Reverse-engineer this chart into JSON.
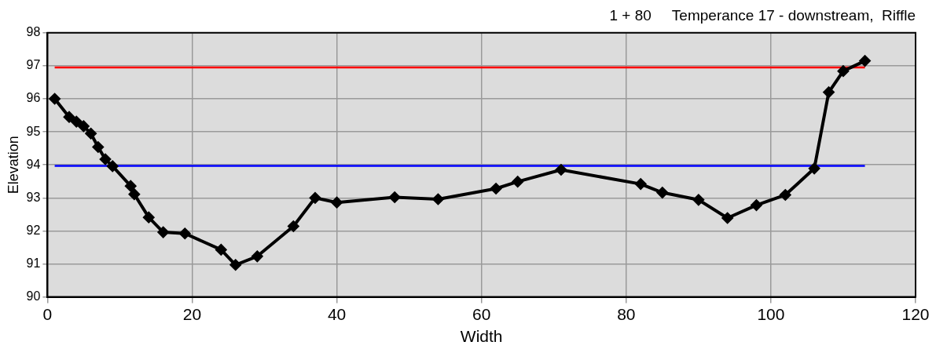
{
  "chart_data": {
    "type": "line",
    "title": "1 + 80     Temperance 17 - downstream,  Riffle",
    "xlabel": "Width",
    "ylabel": "Elevation",
    "x": [
      1,
      3,
      4,
      5,
      6,
      7,
      8,
      9,
      11.5,
      12,
      14,
      16,
      19,
      24,
      26,
      29,
      34,
      37,
      40,
      48,
      54,
      62,
      65,
      71,
      82,
      85,
      90,
      94,
      98,
      102,
      106,
      108,
      110,
      113
    ],
    "series": [
      {
        "color": "#000000",
        "values": [
          96.0,
          95.45,
          95.31,
          95.17,
          94.95,
          94.54,
          94.17,
          93.96,
          93.36,
          93.11,
          92.41,
          91.96,
          91.92,
          91.43,
          90.97,
          91.23,
          92.14,
          93.0,
          92.86,
          93.02,
          92.96,
          93.28,
          93.49,
          93.85,
          93.42,
          93.16,
          92.94,
          92.39,
          92.78,
          93.09,
          93.89,
          96.2,
          96.84,
          97.15
        ],
        "marker": "diamond"
      }
    ],
    "xlim": [
      0,
      120
    ],
    "xticks": [
      0,
      20,
      40,
      60,
      80,
      100,
      120
    ],
    "ylim": [
      90,
      98
    ],
    "yticks": [
      90,
      91,
      92,
      93,
      94,
      95,
      96,
      97,
      98
    ],
    "ref_lines": [
      {
        "axis": "y",
        "value": 96.95,
        "color": "#ff0000"
      },
      {
        "axis": "y",
        "value": 93.97,
        "color": "#0000ff"
      }
    ],
    "grid": true,
    "legend": false,
    "line_style": "solid"
  }
}
